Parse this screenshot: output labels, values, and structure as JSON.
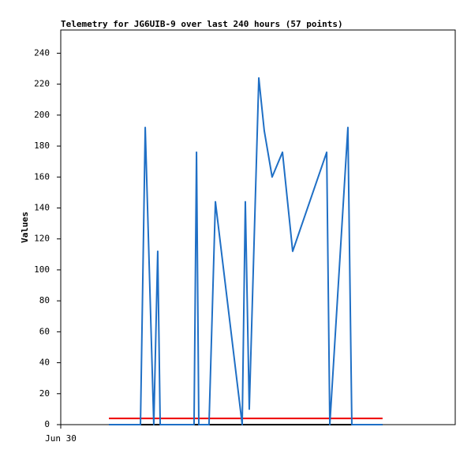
{
  "chart_data": {
    "type": "line",
    "title": "Telemetry for JG6UIB-9 over last 240 hours (57 points)",
    "y_label": "Values",
    "xlim": [
      0,
      240
    ],
    "xticks": [
      {
        "value": 0,
        "label": "Jun 30"
      }
    ],
    "ylim": [
      0,
      255
    ],
    "yticks": [
      0,
      20,
      40,
      60,
      80,
      100,
      120,
      140,
      160,
      180,
      200,
      220,
      240
    ],
    "series": [
      {
        "color": "#1f6fc5",
        "x": [
          29.3,
          48.5,
          51.4,
          56.6,
          59.0,
          60.5,
          81.1,
          82.6,
          84.0,
          90.2,
          94.1,
          110.4,
          112.3,
          114.7,
          120.5,
          123.8,
          128.6,
          134.9,
          141.1,
          161.8,
          163.7,
          174.7,
          177.1,
          195.8
        ],
        "values": [
          0,
          0,
          192,
          0,
          112,
          0,
          0,
          176,
          0,
          0,
          144,
          0,
          144,
          10,
          224,
          190,
          160,
          176,
          112,
          176,
          0,
          192,
          0,
          0
        ]
      },
      {
        "color": "#ee0000",
        "x": [
          29.3,
          195.8
        ],
        "values": [
          4,
          4
        ]
      },
      {
        "color": "#000000",
        "x": [
          29.3,
          195.8
        ],
        "values": [
          0,
          0
        ]
      }
    ]
  }
}
